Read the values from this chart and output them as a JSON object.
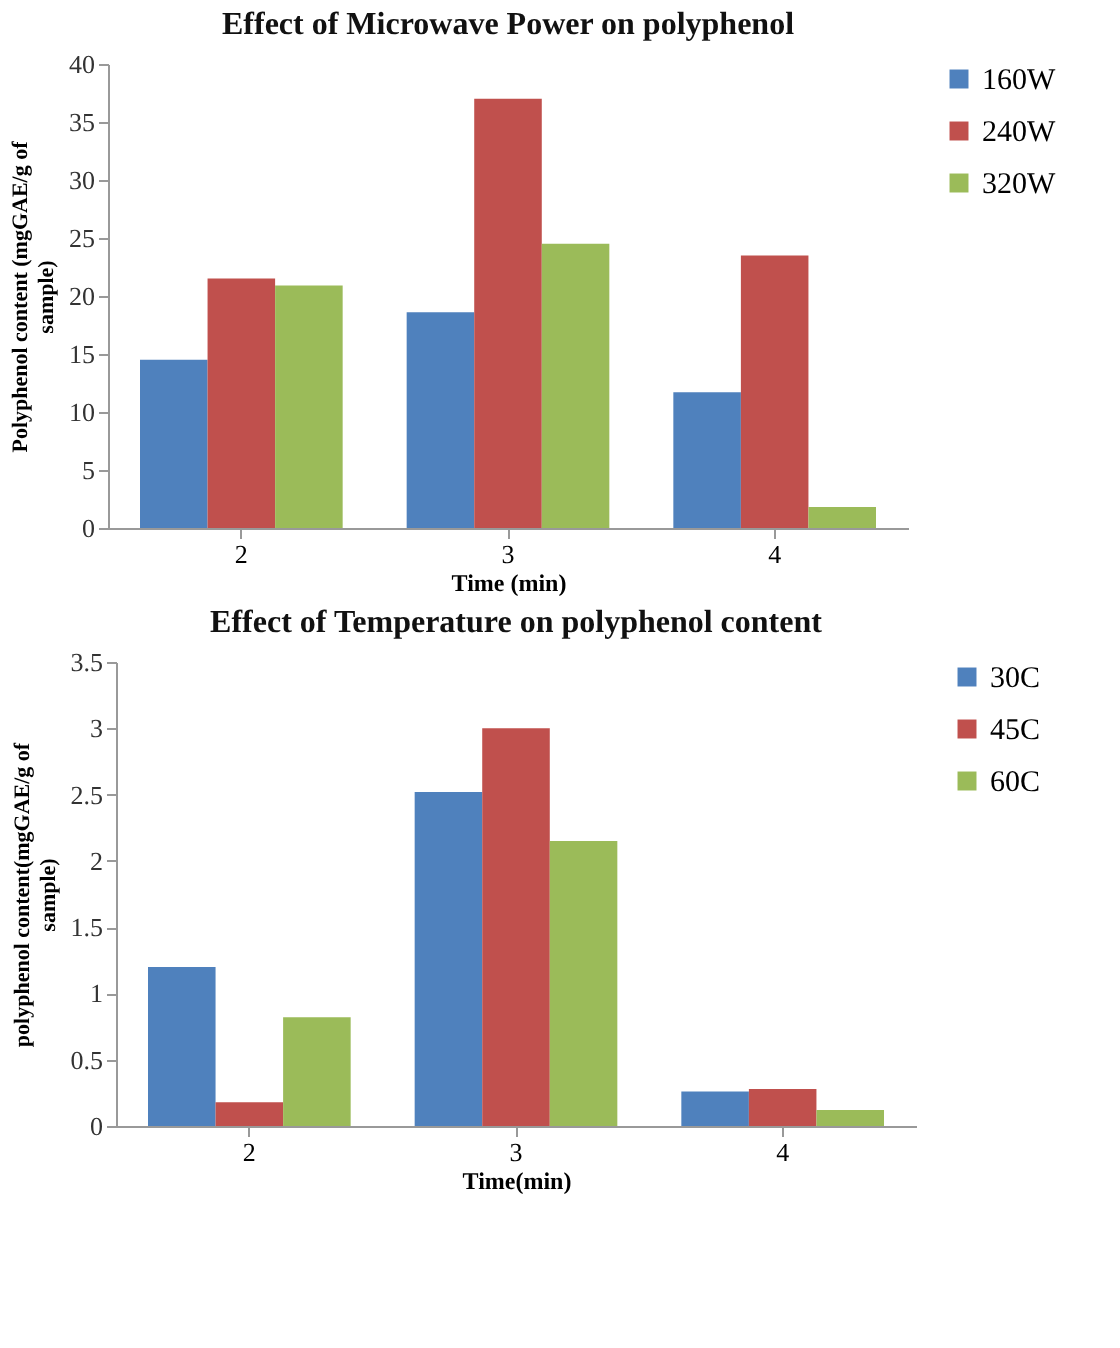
{
  "chart_data": [
    {
      "type": "bar",
      "title": "Effect of Microwave Power on polyphenol",
      "xlabel": "Time (min)",
      "ylabel": "Polyphenol content (mgGAE/g of sample)",
      "categories": [
        "2",
        "3",
        "4"
      ],
      "ylim": [
        0,
        40
      ],
      "yticks": [
        0,
        5,
        10,
        15,
        20,
        25,
        30,
        35,
        40
      ],
      "legend": "right",
      "series": [
        {
          "name": "160W",
          "color": "#4f81bd",
          "values": [
            14.5,
            18.6,
            11.7
          ]
        },
        {
          "name": "240W",
          "color": "#c0504d",
          "values": [
            21.5,
            37,
            23.5
          ]
        },
        {
          "name": "320W",
          "color": "#9bbb59",
          "values": [
            20.9,
            24.5,
            1.8
          ]
        }
      ]
    },
    {
      "type": "bar",
      "title": "Effect of Temperature on polyphenol content",
      "xlabel": "Time(min)",
      "ylabel": "polyphenol content(mgGAE/g of sample)",
      "categories": [
        "2",
        "3",
        "4"
      ],
      "ylim": [
        0,
        3.5
      ],
      "yticks": [
        0,
        0.5,
        1,
        1.5,
        2,
        2.5,
        3,
        3.5
      ],
      "legend": "right",
      "series": [
        {
          "name": "30C",
          "color": "#4f81bd",
          "values": [
            1.2,
            2.52,
            0.26
          ]
        },
        {
          "name": "45C",
          "color": "#c0504d",
          "values": [
            0.18,
            3.0,
            0.28
          ]
        },
        {
          "name": "60C",
          "color": "#9bbb59",
          "values": [
            0.82,
            2.15,
            0.12
          ]
        }
      ]
    }
  ]
}
